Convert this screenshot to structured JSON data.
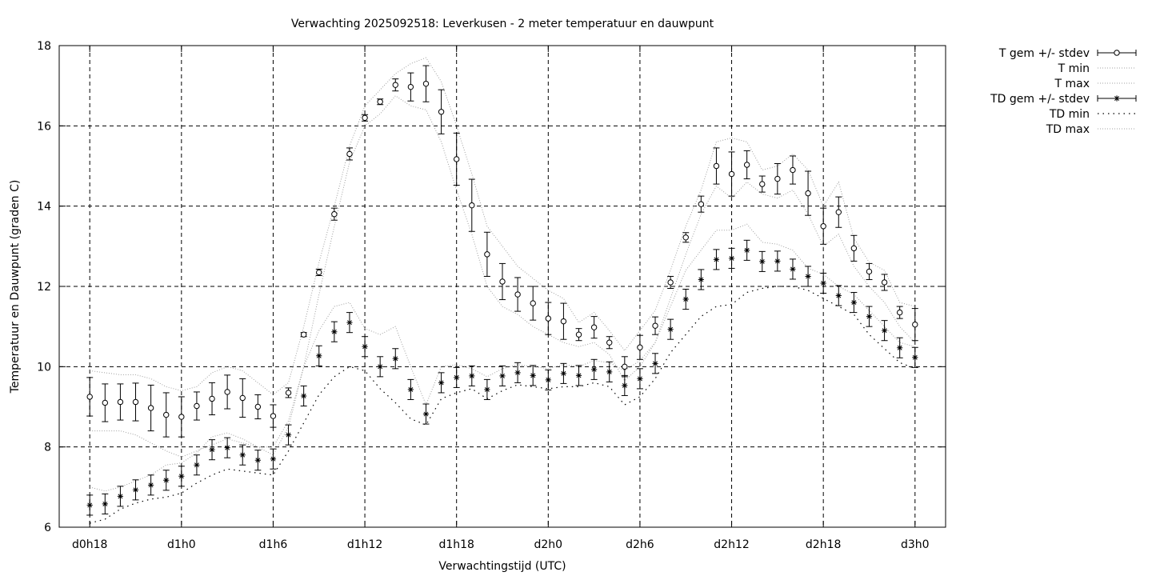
{
  "chart_data": {
    "type": "line",
    "title": "Verwachting 2025092518: Leverkusen - 2 meter temperatuur en dauwpunt",
    "xlabel": "Verwachtingstijd (UTC)",
    "ylabel": "Temperatuur en Dauwpunt (graden C)",
    "x_unit": "forecast hour (d0h18 = hour 0)",
    "xlim": [
      -2,
      56
    ],
    "ylim": [
      6,
      18
    ],
    "yticks": [
      6,
      8,
      10,
      12,
      14,
      16,
      18
    ],
    "xticks": [
      {
        "x": 0,
        "label": "d0h18"
      },
      {
        "x": 6,
        "label": "d1h0"
      },
      {
        "x": 12,
        "label": "d1h6"
      },
      {
        "x": 18,
        "label": "d1h12"
      },
      {
        "x": 24,
        "label": "d1h18"
      },
      {
        "x": 30,
        "label": "d2h0"
      },
      {
        "x": 36,
        "label": "d2h6"
      },
      {
        "x": 42,
        "label": "d2h12"
      },
      {
        "x": 48,
        "label": "d2h18"
      },
      {
        "x": 54,
        "label": "d3h0"
      }
    ],
    "grid": true,
    "legend_position": "outside-top-right",
    "x": [
      0,
      1,
      2,
      3,
      4,
      5,
      6,
      7,
      8,
      9,
      10,
      11,
      12,
      13,
      14,
      15,
      16,
      17,
      18,
      19,
      20,
      21,
      22,
      23,
      24,
      25,
      26,
      27,
      28,
      29,
      30,
      31,
      32,
      33,
      34,
      35,
      36,
      37,
      38,
      39,
      40,
      41,
      42,
      43,
      44,
      45,
      46,
      47,
      48,
      49,
      50,
      51,
      52,
      53,
      54
    ],
    "series": [
      {
        "name": "T gem +/- stdev",
        "marker": "open-circle",
        "values": [
          9.25,
          9.1,
          9.12,
          9.12,
          8.97,
          8.8,
          8.75,
          9.02,
          9.2,
          9.37,
          9.22,
          9.0,
          8.77,
          9.35,
          10.8,
          12.35,
          13.8,
          15.3,
          16.2,
          16.6,
          17.02,
          16.97,
          17.05,
          16.35,
          15.17,
          14.02,
          12.8,
          12.12,
          11.8,
          11.58,
          11.2,
          11.13,
          10.8,
          10.98,
          10.6,
          10.0,
          10.48,
          11.02,
          12.1,
          13.22,
          14.05,
          15.0,
          14.8,
          15.03,
          14.55,
          14.68,
          14.9,
          14.32,
          13.5,
          13.85,
          12.95,
          12.37,
          12.1,
          11.35,
          11.05
        ],
        "stdev": [
          0.48,
          0.47,
          0.45,
          0.47,
          0.57,
          0.55,
          0.5,
          0.35,
          0.4,
          0.42,
          0.48,
          0.3,
          0.28,
          0.12,
          0.05,
          0.08,
          0.15,
          0.15,
          0.08,
          0.07,
          0.15,
          0.35,
          0.45,
          0.55,
          0.65,
          0.65,
          0.55,
          0.45,
          0.42,
          0.42,
          0.4,
          0.45,
          0.15,
          0.27,
          0.15,
          0.25,
          0.3,
          0.22,
          0.15,
          0.12,
          0.2,
          0.45,
          0.55,
          0.35,
          0.2,
          0.38,
          0.35,
          0.55,
          0.45,
          0.38,
          0.32,
          0.2,
          0.2,
          0.15,
          0.4
        ]
      },
      {
        "name": "T min",
        "style": "dotted",
        "values": [
          8.4,
          8.4,
          8.4,
          8.3,
          8.1,
          7.9,
          7.75,
          7.9,
          8.05,
          8.2,
          8.1,
          8.0,
          7.8,
          8.5,
          10.0,
          11.8,
          13.5,
          15.1,
          16.0,
          16.3,
          16.75,
          16.5,
          16.4,
          15.6,
          14.4,
          13.3,
          12.0,
          11.5,
          11.3,
          11.0,
          10.8,
          10.6,
          10.5,
          10.6,
          10.3,
          9.65,
          10.0,
          10.6,
          11.7,
          12.8,
          13.8,
          14.5,
          14.2,
          14.6,
          14.3,
          14.2,
          14.4,
          13.8,
          13.0,
          13.3,
          12.5,
          12.0,
          11.6,
          11.0,
          10.6
        ]
      },
      {
        "name": "T max",
        "style": "dotted",
        "values": [
          9.9,
          9.85,
          9.8,
          9.8,
          9.7,
          9.5,
          9.4,
          9.5,
          9.85,
          10.0,
          9.9,
          9.6,
          9.3,
          9.6,
          11.0,
          12.6,
          14.0,
          15.5,
          16.5,
          16.9,
          17.3,
          17.55,
          17.7,
          17.1,
          16.0,
          14.8,
          13.5,
          13.0,
          12.5,
          12.2,
          11.9,
          11.7,
          11.1,
          11.35,
          10.9,
          10.4,
          10.9,
          11.4,
          12.4,
          13.5,
          14.4,
          15.6,
          15.7,
          15.6,
          14.9,
          15.0,
          15.3,
          14.9,
          14.0,
          14.6,
          13.2,
          12.6,
          12.4,
          11.6,
          11.5
        ]
      },
      {
        "name": "TD gem +/- stdev",
        "marker": "star",
        "values": [
          6.55,
          6.58,
          6.77,
          6.93,
          7.05,
          7.17,
          7.27,
          7.55,
          7.93,
          7.98,
          7.8,
          7.67,
          7.7,
          8.3,
          9.27,
          10.27,
          10.87,
          11.1,
          10.5,
          10.0,
          10.2,
          9.43,
          8.82,
          9.6,
          9.73,
          9.77,
          9.43,
          9.77,
          9.85,
          9.78,
          9.67,
          9.83,
          9.78,
          9.93,
          9.87,
          9.53,
          9.7,
          10.08,
          10.93,
          11.68,
          12.17,
          12.67,
          12.7,
          12.9,
          12.62,
          12.63,
          12.43,
          12.25,
          12.08,
          11.77,
          11.6,
          11.25,
          10.9,
          10.47,
          10.23
        ]
      },
      {
        "name": "TD min",
        "style": "dotted-coarse",
        "values": [
          6.1,
          6.2,
          6.45,
          6.6,
          6.7,
          6.75,
          6.85,
          7.1,
          7.3,
          7.45,
          7.4,
          7.35,
          7.3,
          7.9,
          8.6,
          9.3,
          9.75,
          10.0,
          9.9,
          9.45,
          9.1,
          8.7,
          8.55,
          9.2,
          9.35,
          9.45,
          9.2,
          9.4,
          9.55,
          9.5,
          9.45,
          9.5,
          9.5,
          9.6,
          9.5,
          9.05,
          9.25,
          9.7,
          10.35,
          10.8,
          11.25,
          11.5,
          11.55,
          11.85,
          11.95,
          12.0,
          12.0,
          11.9,
          11.7,
          11.5,
          11.3,
          10.8,
          10.45,
          10.1,
          9.95
        ]
      },
      {
        "name": "TD max",
        "style": "dotted",
        "values": [
          7.0,
          6.9,
          7.0,
          7.15,
          7.3,
          7.55,
          7.6,
          7.85,
          8.25,
          8.35,
          8.2,
          8.0,
          8.0,
          8.65,
          10.0,
          10.9,
          11.5,
          11.6,
          10.95,
          10.8,
          11.0,
          10.0,
          9.05,
          10.0,
          10.05,
          9.95,
          9.75,
          9.95,
          10.05,
          10.0,
          9.95,
          10.05,
          10.0,
          10.15,
          10.1,
          9.9,
          10.15,
          10.6,
          11.5,
          12.4,
          12.9,
          13.4,
          13.4,
          13.55,
          13.1,
          13.05,
          12.9,
          12.45,
          12.3,
          12.0,
          11.8,
          11.4,
          11.0,
          10.6,
          10.5
        ]
      }
    ]
  },
  "legend": {
    "items": [
      {
        "label": "T gem +/- stdev",
        "symbol": "errorbar-circle"
      },
      {
        "label": "T min",
        "symbol": "dotted"
      },
      {
        "label": "T max",
        "symbol": "dotted"
      },
      {
        "label": "TD gem +/- stdev",
        "symbol": "errorbar-star"
      },
      {
        "label": "TD min",
        "symbol": "dotted-coarse"
      },
      {
        "label": "TD max",
        "symbol": "dotted"
      }
    ]
  },
  "colors": {
    "axis": "#000000",
    "grid": "#000000",
    "minmax_line": "#a0a0a0",
    "td_min_line": "#000000"
  }
}
